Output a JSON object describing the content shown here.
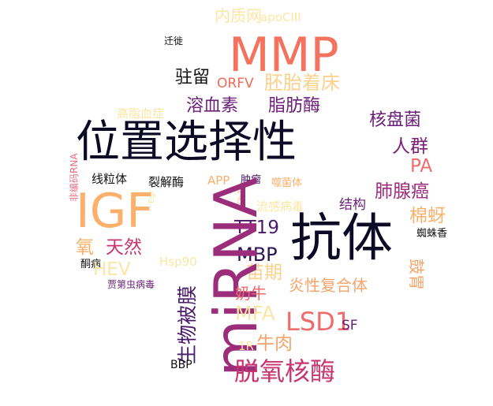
{
  "words": [
    {
      "id": "neizhiwang",
      "text": "内质网",
      "color": "#fbe6a4"
    },
    {
      "id": "apociii",
      "text": "apoCIII",
      "color": "#fbe6a4"
    },
    {
      "id": "qiantu",
      "text": "迁徙",
      "color": "#111111"
    },
    {
      "id": "mmp",
      "text": "MMP",
      "color": "#f3735f"
    },
    {
      "id": "zhuliu",
      "text": "驻留",
      "color": "#111111"
    },
    {
      "id": "orfv",
      "text": "ORFV",
      "color": "#f26a55"
    },
    {
      "id": "peitai",
      "text": "胚胎着床",
      "color": "#fbd08c"
    },
    {
      "id": "rongxuesu",
      "text": "溶血素",
      "color": "#6b1f78"
    },
    {
      "id": "zhifangmei",
      "text": "脂肪酶",
      "color": "#6b1f78"
    },
    {
      "id": "gaozhi",
      "text": "高脂血症",
      "color": "#fbe6a4"
    },
    {
      "id": "hepanjun",
      "text": "核盘菌",
      "color": "#6b1f78"
    },
    {
      "id": "weizhi",
      "text": "位置选择性",
      "color": "#0d0a26"
    },
    {
      "id": "renqun",
      "text": "人群",
      "color": "#7b1f79"
    },
    {
      "id": "pa",
      "text": "PA",
      "color": "#f06c6c"
    },
    {
      "id": "xianliti",
      "text": "线粒体",
      "color": "#111111"
    },
    {
      "id": "liejiemei",
      "text": "裂解酶",
      "color": "#111111"
    },
    {
      "id": "app",
      "text": "APP",
      "color": "#fbb06c"
    },
    {
      "id": "zhongliu",
      "text": "肿瘤",
      "color": "#4a1a6b"
    },
    {
      "id": "shijunti",
      "text": "噬菌体",
      "color": "#fbb06c"
    },
    {
      "id": "feixianai",
      "text": "肺腺癌",
      "color": "#9b2d7a"
    },
    {
      "id": "feibianma",
      "text": "非编码RNA",
      "color": "#f06c80"
    },
    {
      "id": "egr",
      "text": "Egr",
      "color": "#fbe6a4"
    },
    {
      "id": "igf",
      "text": "IGF",
      "color": "#fbb06c"
    },
    {
      "id": "th1",
      "text": "Th1",
      "color": "#fbd08c"
    },
    {
      "id": "liugan",
      "text": "流感病毒",
      "color": "#fbe6a4"
    },
    {
      "id": "jiegou",
      "text": "结构",
      "color": "#6b1f78"
    },
    {
      "id": "mianya",
      "text": "棉蚜",
      "color": "#fbb06c"
    },
    {
      "id": "tt19",
      "text": "TT19",
      "color": "#4a1a6b"
    },
    {
      "id": "kangti",
      "text": "抗体",
      "color": "#0d0a26"
    },
    {
      "id": "zhizhuxiang",
      "text": "蜘蛛香",
      "color": "#111111"
    },
    {
      "id": "yang",
      "text": "氧",
      "color": "#fbb06c"
    },
    {
      "id": "tianran",
      "text": "天然",
      "color": "#c8346f"
    },
    {
      "id": "mbp",
      "text": "MBP",
      "color": "#2d1454"
    },
    {
      "id": "boyu",
      "text": "鼓胃",
      "color": "#f5a56c"
    },
    {
      "id": "hsp90",
      "text": "Hsp90",
      "color": "#fbe6a4"
    },
    {
      "id": "tongbing",
      "text": "酮病",
      "color": "#111111"
    },
    {
      "id": "miaoqi",
      "text": "苗期",
      "color": "#fbd08c"
    },
    {
      "id": "hev",
      "text": "HEV",
      "color": "#fbe6a4"
    },
    {
      "id": "jiadi",
      "text": "贾第虫病毒",
      "color": "#6b1f78"
    },
    {
      "id": "yanzheng",
      "text": "炎性复合体",
      "color": "#f5a56c"
    },
    {
      "id": "mirna",
      "text": "miRNA",
      "color": "#9b2d7a"
    },
    {
      "id": "shengwu",
      "text": "生物被膜",
      "color": "#4a1a6b"
    },
    {
      "id": "nainiu",
      "text": "奶牛",
      "color": "#f06c6c"
    },
    {
      "id": "mfa",
      "text": "MFA",
      "color": "#fbe6a4"
    },
    {
      "id": "lsd1",
      "text": "LSD1",
      "color": "#f06c6c"
    },
    {
      "id": "sf",
      "text": "SF",
      "color": "#6b1f78"
    },
    {
      "id": "oner",
      "text": "1R",
      "color": "#fbe6a4"
    },
    {
      "id": "niurou",
      "text": "牛肉",
      "color": "#f5a56c"
    },
    {
      "id": "bbp",
      "text": "BBP",
      "color": "#111111"
    },
    {
      "id": "tuoyang",
      "text": "脱氧核酶",
      "color": "#c8346f"
    }
  ]
}
